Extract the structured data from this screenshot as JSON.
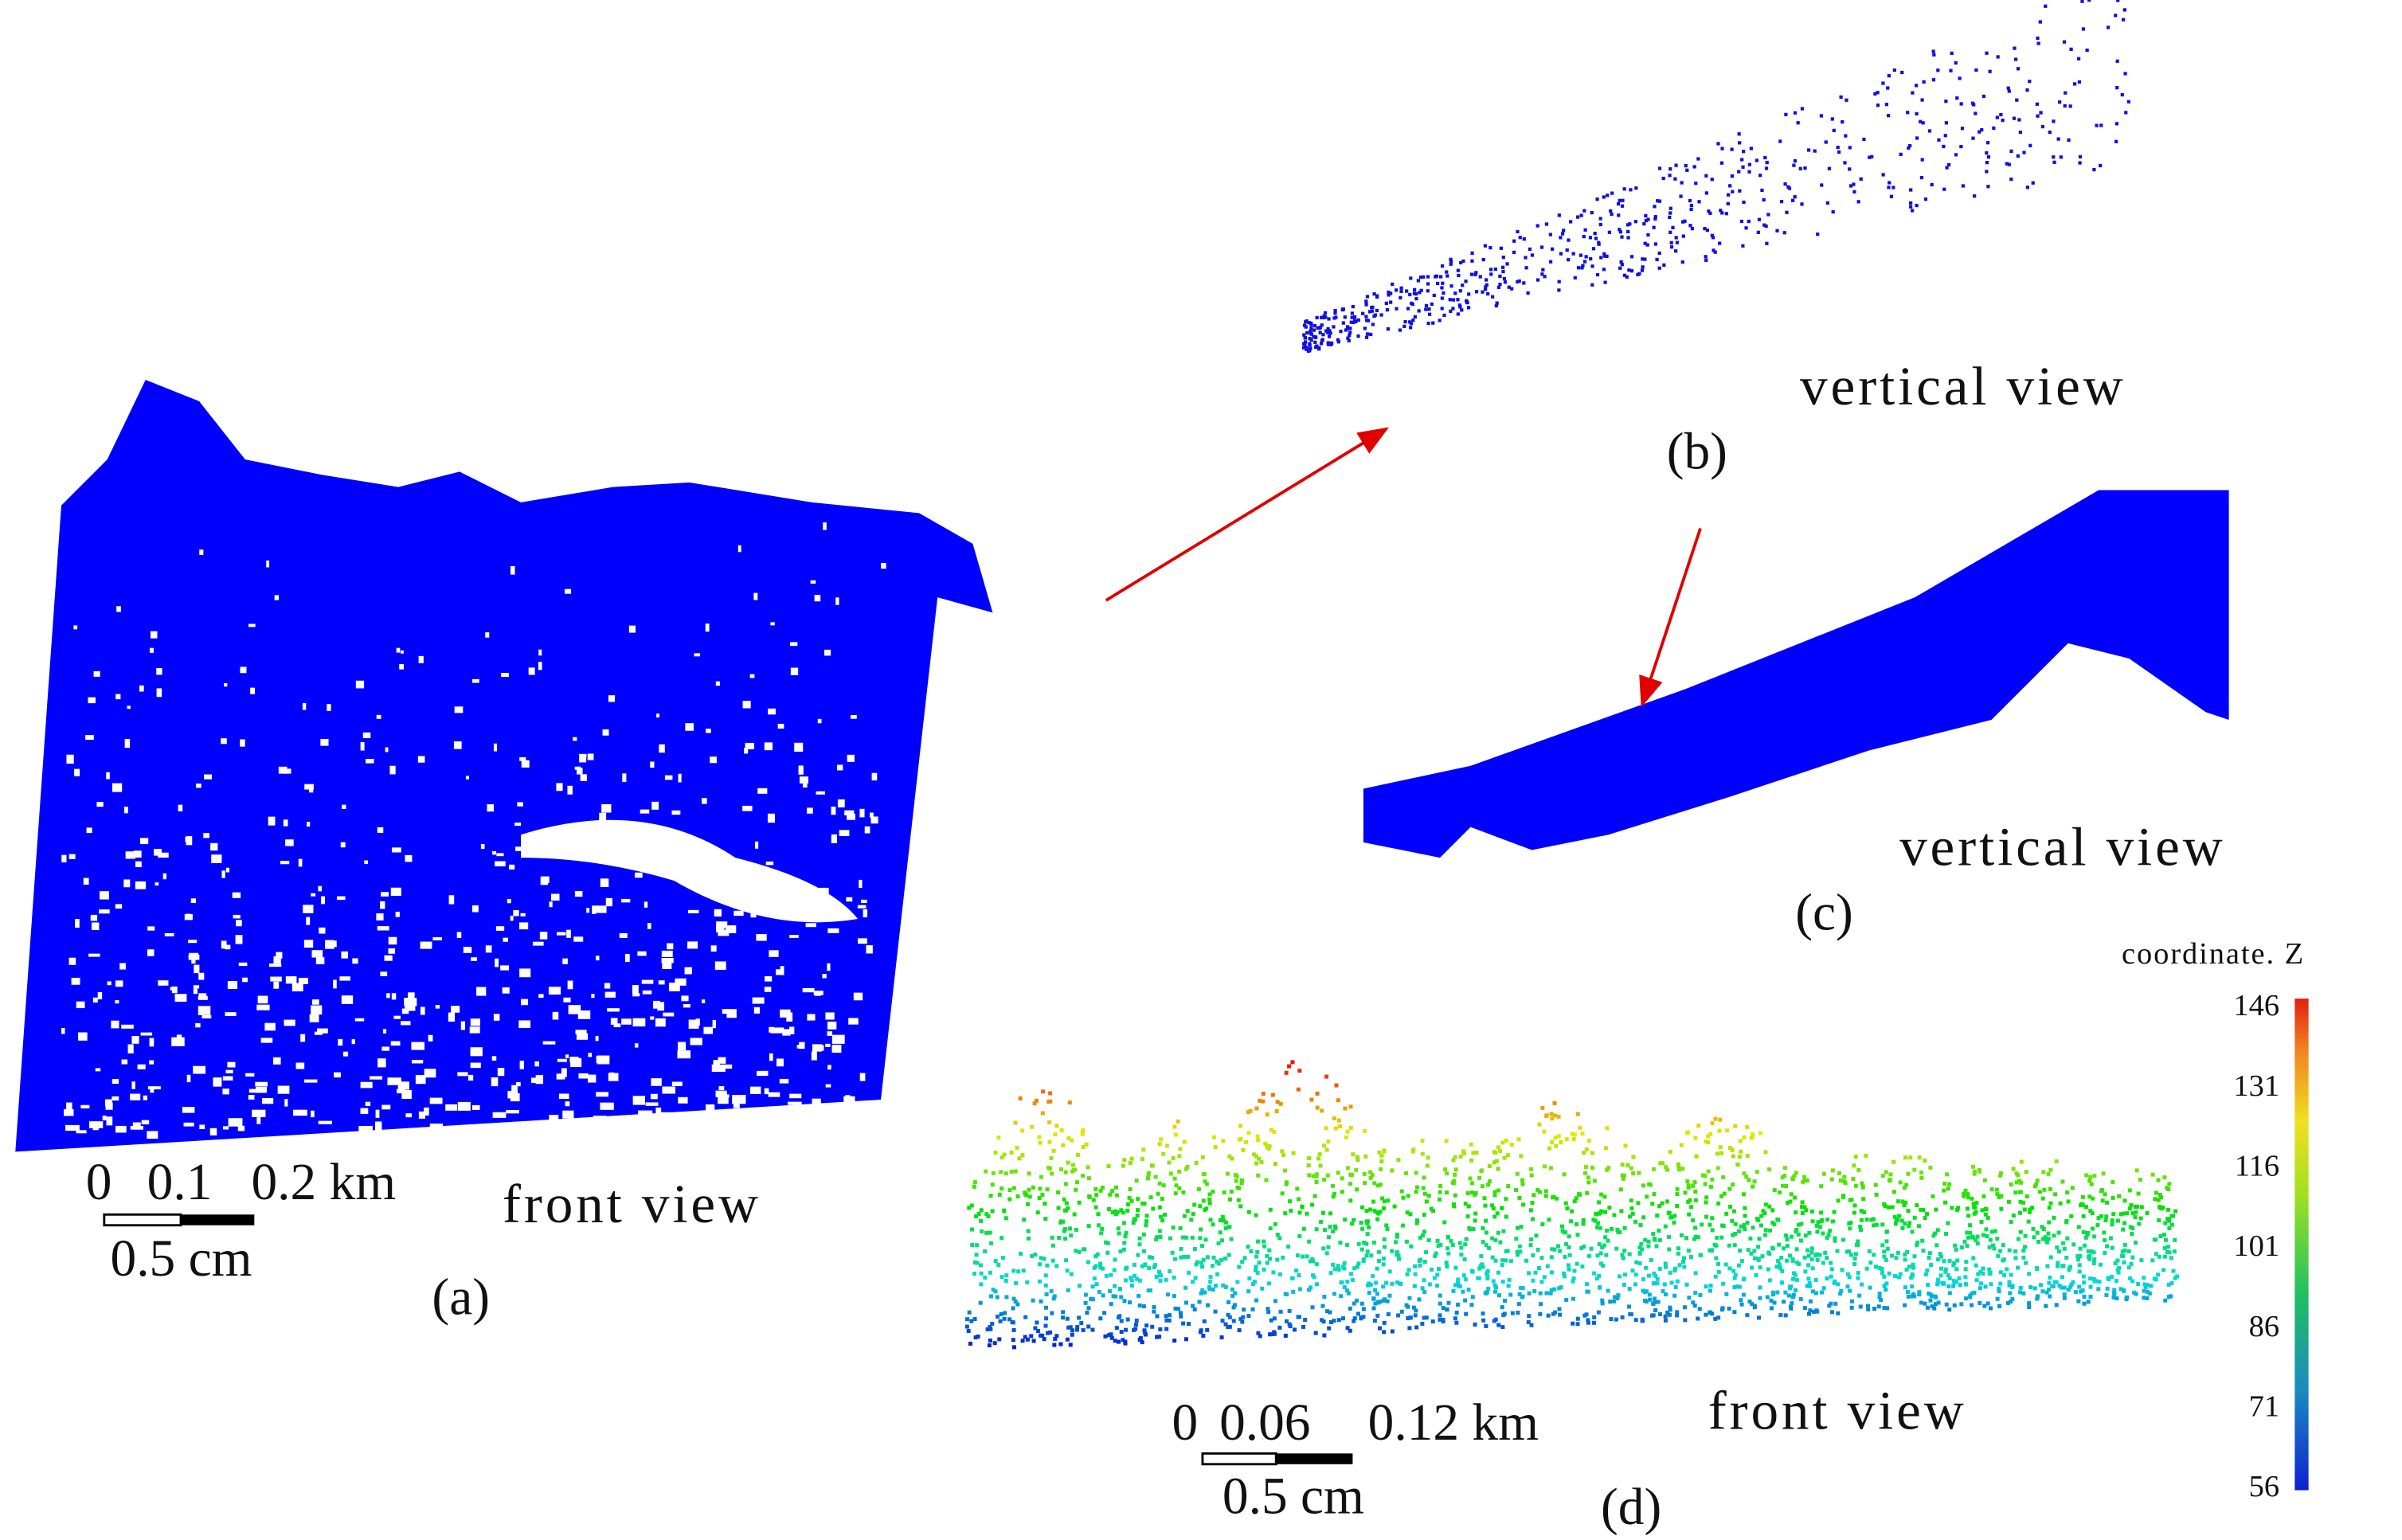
{
  "panels": [
    {
      "label": "(a)",
      "view": "front view",
      "scale": {
        "ticks": [
          "0",
          "0.1",
          "0.2 km"
        ],
        "length": "0.5 cm"
      }
    },
    {
      "label": "(b)",
      "view": "vertical view"
    },
    {
      "label": "(c)",
      "view": "vertical view"
    },
    {
      "label": "(d)",
      "view": "front view",
      "scale": {
        "ticks": [
          "0",
          "0.06",
          "0.12 km"
        ],
        "length": "0.5 cm"
      }
    }
  ],
  "colorbar": {
    "title": "coordinate. Z",
    "ticks": [
      146,
      131,
      116,
      101,
      86,
      71,
      56
    ]
  }
}
